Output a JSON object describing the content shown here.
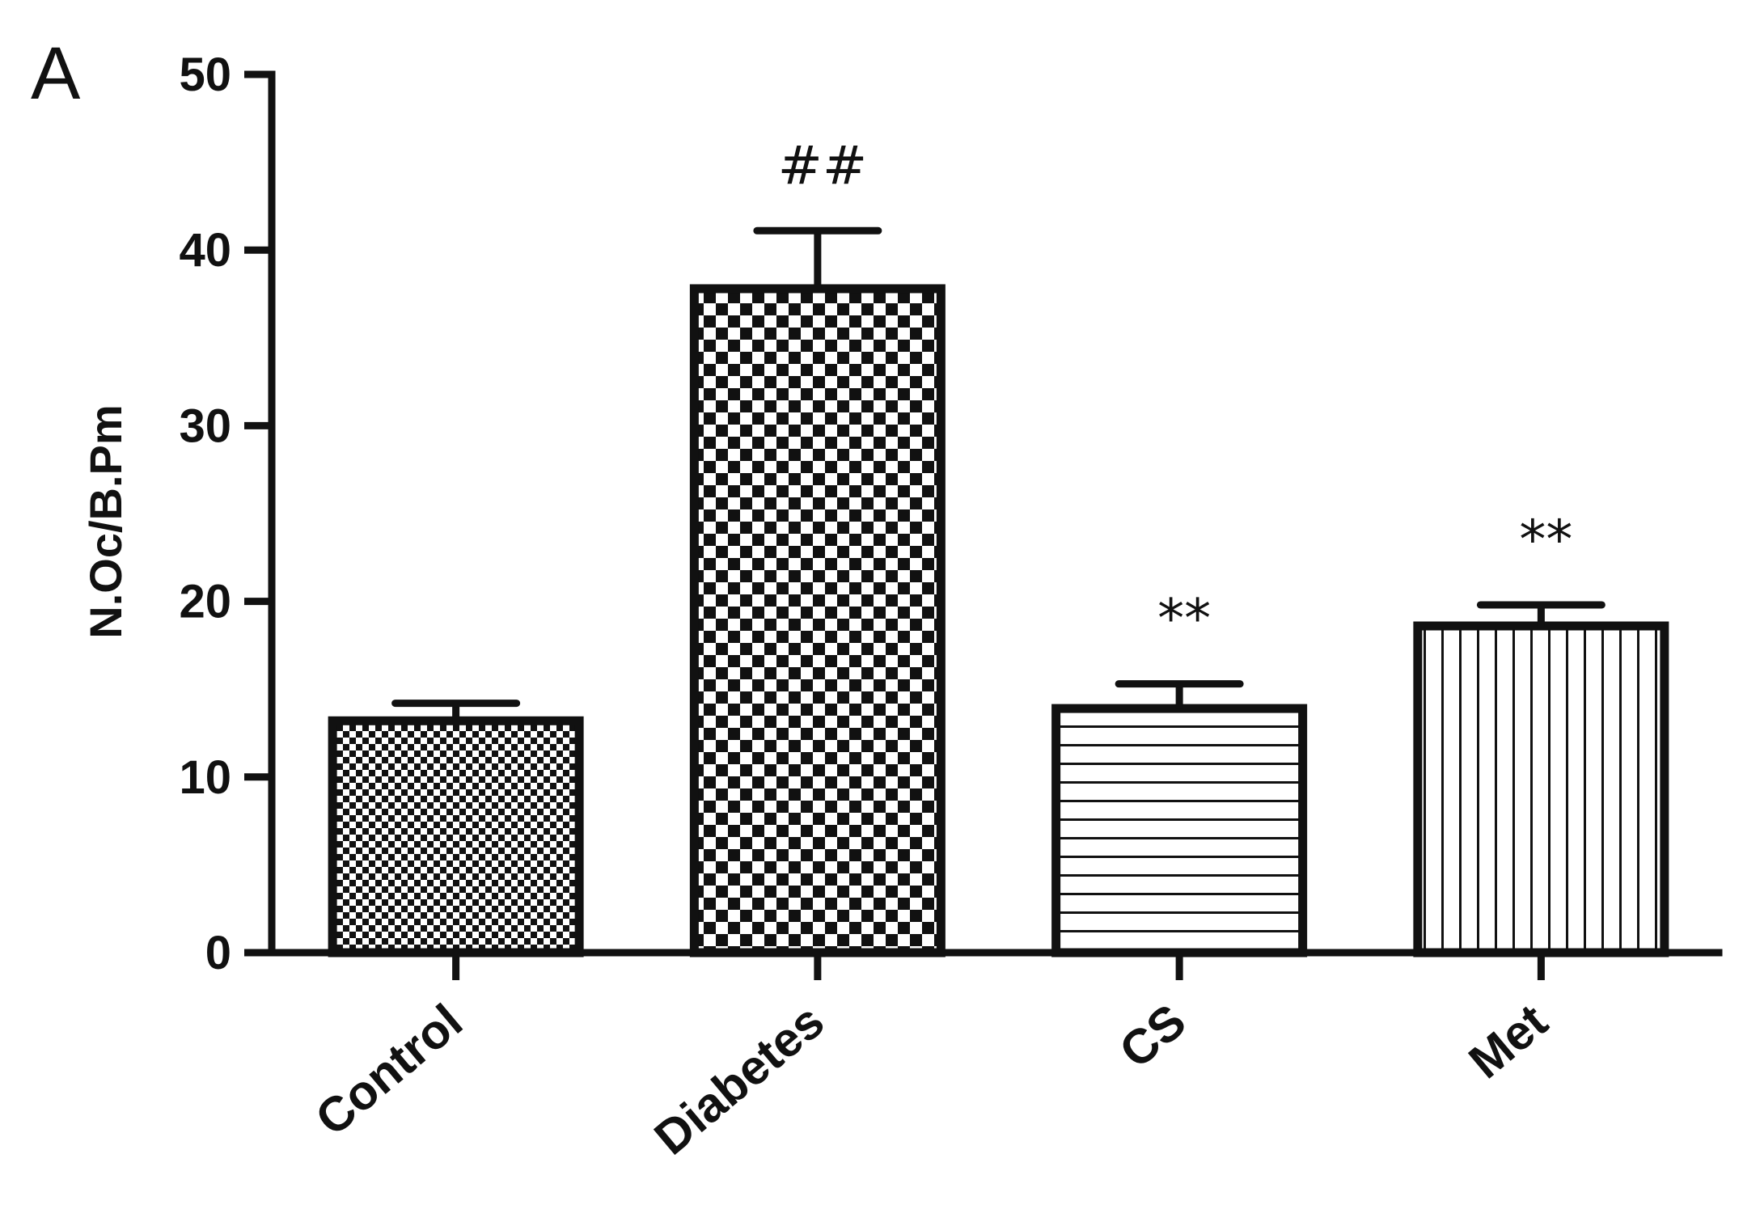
{
  "panel_label": "A",
  "chart_data": {
    "type": "bar",
    "categories": [
      "Control",
      "Diabetes",
      "CS",
      "Met"
    ],
    "values": [
      13.2,
      37.8,
      13.9,
      18.6
    ],
    "errors": [
      1.0,
      3.3,
      1.4,
      1.2
    ],
    "annotations": [
      "",
      "##",
      "**",
      "**"
    ],
    "patterns": [
      "fine-checker",
      "coarse-checker",
      "horizontal-lines",
      "vertical-lines"
    ],
    "title": "",
    "xlabel": "",
    "ylabel": "N.Oc/B.Pm",
    "ylim": [
      0,
      50
    ],
    "yticks": [
      0,
      10,
      20,
      30,
      40,
      50
    ],
    "grid": false,
    "legend": "none",
    "bar_fill": "#ffffff",
    "bar_edge": "#111111"
  }
}
